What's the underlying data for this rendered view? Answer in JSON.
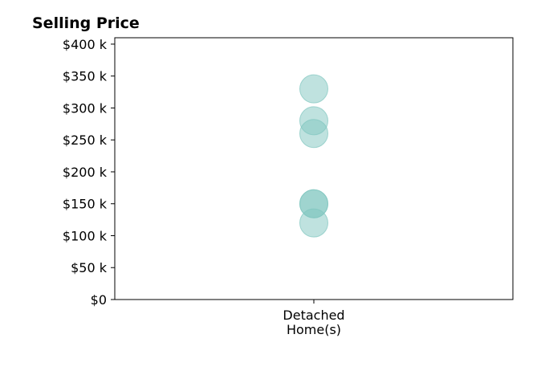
{
  "chart_data": {
    "type": "scatter",
    "title": "Selling Price",
    "xlabel": "",
    "ylabel": "",
    "categories": [
      [
        "Detached",
        "Home(s)"
      ]
    ],
    "points": [
      {
        "category": 0,
        "value": 330000
      },
      {
        "category": 0,
        "value": 280000
      },
      {
        "category": 0,
        "value": 260000
      },
      {
        "category": 0,
        "value": 150000
      },
      {
        "category": 0,
        "value": 150000
      },
      {
        "category": 0,
        "value": 120000
      }
    ],
    "ylim": [
      0,
      410000
    ],
    "yticks": [
      0,
      50000,
      100000,
      150000,
      200000,
      250000,
      300000,
      350000,
      400000
    ],
    "ytick_labels": [
      "$0",
      "$50 k",
      "$100 k",
      "$150 k",
      "$200 k",
      "$250 k",
      "$300 k",
      "$350 k",
      "$400 k"
    ],
    "marker_color": "#7fc6bf",
    "marker_opacity": 0.5,
    "grid": false,
    "legend": "none"
  }
}
